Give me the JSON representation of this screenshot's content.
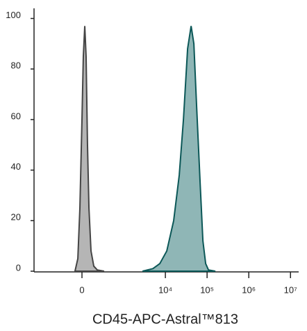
{
  "chart_data": {
    "type": "histogram-overlay",
    "xlabel": "CD45-APC-Astral™813",
    "xscale": "asinh",
    "xlim": [
      -1350,
      15700000
    ],
    "ylim": [
      0,
      104
    ],
    "xticks": [
      0,
      {
        "value": 10000,
        "label": "10⁴"
      },
      {
        "value": 100000,
        "label": "10⁵"
      },
      {
        "value": 1000000,
        "label": "10⁶"
      },
      {
        "value": 10000000,
        "label": "10⁷"
      }
    ],
    "yticks": [
      0,
      20,
      40,
      60,
      80,
      100
    ],
    "series": [
      {
        "color": "#b5b5b5",
        "edge": "#444444",
        "x": [
          -79,
          -46,
          -23,
          0,
          15,
          31,
          46,
          62,
          79,
          104,
          140,
          190,
          311
        ],
        "values": [
          0,
          5,
          25,
          60,
          85,
          97,
          85,
          50,
          25,
          8,
          2,
          0.5,
          0
        ]
      },
      {
        "color": "#8fb6b6",
        "edge": "#0b5757",
        "x": [
          2820,
          5010,
          7350,
          10800,
          15800,
          21500,
          27100,
          34100,
          41400,
          48200,
          56200,
          68100,
          79400,
          92500,
          108000,
          158000
        ],
        "values": [
          0,
          1,
          3,
          8,
          20,
          38,
          60,
          88,
          97,
          90,
          65,
          35,
          12,
          3,
          0.5,
          0
        ]
      }
    ]
  }
}
